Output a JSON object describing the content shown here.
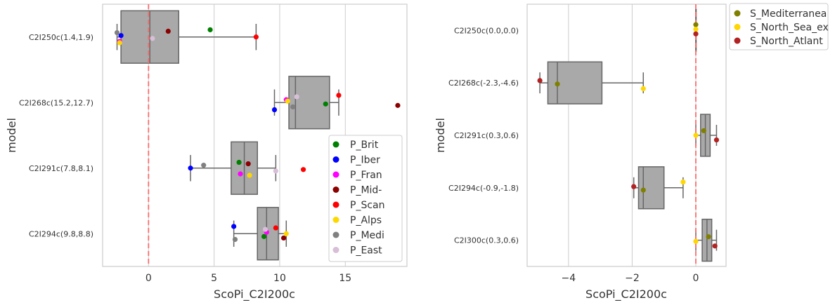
{
  "chart_data": [
    {
      "type": "box",
      "xlabel": "ScoPi_C2I200c",
      "ylabel": "model",
      "xlim": [
        -3.5,
        19.7
      ],
      "xticks": [
        0,
        5,
        10,
        15
      ],
      "reference_line_x": 0,
      "grid": true,
      "legend_placement": "lower-right",
      "categories": [
        "C2I250c(1.4,1.9)",
        "C2I268c(15.2,12.7)",
        "C2I291c(7.8,8.1)",
        "C2I294c(9.8,8.8)"
      ],
      "boxes": [
        {
          "whisker_low": -2.4,
          "q1": -2.1,
          "median": 0.1,
          "q3": 2.3,
          "whisker_high": 8.2
        },
        {
          "whisker_low": 9.6,
          "q1": 10.7,
          "median": 11.2,
          "q3": 13.8,
          "whisker_high": 14.5
        },
        {
          "whisker_low": 3.2,
          "q1": 6.3,
          "median": 7.3,
          "q3": 8.3,
          "whisker_high": 9.7
        },
        {
          "whisker_low": 6.5,
          "q1": 8.3,
          "median": 9.0,
          "q3": 9.9,
          "whisker_high": 10.5
        }
      ],
      "series": [
        {
          "name": "P_Brit",
          "color": "#008000",
          "values": [
            4.7,
            13.5,
            6.9,
            8.8
          ]
        },
        {
          "name": "P_Iber",
          "color": "#0000ff",
          "values": [
            -2.1,
            9.6,
            3.2,
            6.5
          ]
        },
        {
          "name": "P_Fran",
          "color": "#ff00ff",
          "values": [
            -2.2,
            10.5,
            7.0,
            9.0
          ]
        },
        {
          "name": "P_Mid-",
          "color": "#8b0000",
          "values": [
            1.5,
            19.0,
            7.6,
            10.3
          ]
        },
        {
          "name": "P_Scan",
          "color": "#ff0000",
          "values": [
            8.2,
            14.5,
            11.8,
            9.7
          ]
        },
        {
          "name": "P_Alps",
          "color": "#ffd700",
          "values": [
            -2.2,
            10.6,
            7.7,
            10.5
          ]
        },
        {
          "name": "P_Medi",
          "color": "#808080",
          "values": [
            -2.4,
            11.0,
            4.2,
            6.6
          ]
        },
        {
          "name": "P_East",
          "color": "#d8bfd8",
          "values": [
            0.3,
            11.3,
            9.7,
            8.9
          ]
        }
      ]
    },
    {
      "type": "box",
      "xlabel": "ScoPi_C2I200c",
      "ylabel": "model",
      "xlim": [
        -5.3,
        0.95
      ],
      "xticks": [
        -4,
        -2,
        0
      ],
      "xtick_labels": [
        "−4",
        "−2",
        "0"
      ],
      "reference_line_x": 0,
      "grid": true,
      "legend_placement": "outside upper-right",
      "categories": [
        "C2I250c(0.0,0.0)",
        "C2I268c(-2.3,-4.6)",
        "C2I291c(0.3,0.6)",
        "C2I294c(-0.9,-1.8)",
        "C2I300c(0.3,0.6)"
      ],
      "boxes": [
        {
          "whisker_low": 0.0,
          "q1": 0.0,
          "median": 0.0,
          "q3": 0.0,
          "whisker_high": 0.0
        },
        {
          "whisker_low": -4.9,
          "q1": -4.65,
          "median": -4.35,
          "q3": -2.95,
          "whisker_high": -1.65
        },
        {
          "whisker_low": 0.0,
          "q1": 0.15,
          "median": 0.3,
          "q3": 0.45,
          "whisker_high": 0.65
        },
        {
          "whisker_low": -1.95,
          "q1": -1.8,
          "median": -1.65,
          "q3": -1.0,
          "whisker_high": -0.4
        },
        {
          "whisker_low": 0.0,
          "q1": 0.2,
          "median": 0.35,
          "q3": 0.5,
          "whisker_high": 0.65
        }
      ],
      "series": [
        {
          "name": "S_Mediterranea",
          "color": "#808000",
          "values": [
            0.0,
            -4.35,
            0.25,
            -1.65,
            0.4
          ]
        },
        {
          "name": "S_North_Sea_ex",
          "color": "#ffd700",
          "values": [
            0.0,
            -1.65,
            0.0,
            -0.4,
            0.0
          ]
        },
        {
          "name": "S_North_Atlant",
          "color": "#b22222",
          "values": [
            0.0,
            -4.9,
            0.65,
            -1.95,
            0.6
          ]
        }
      ]
    }
  ]
}
